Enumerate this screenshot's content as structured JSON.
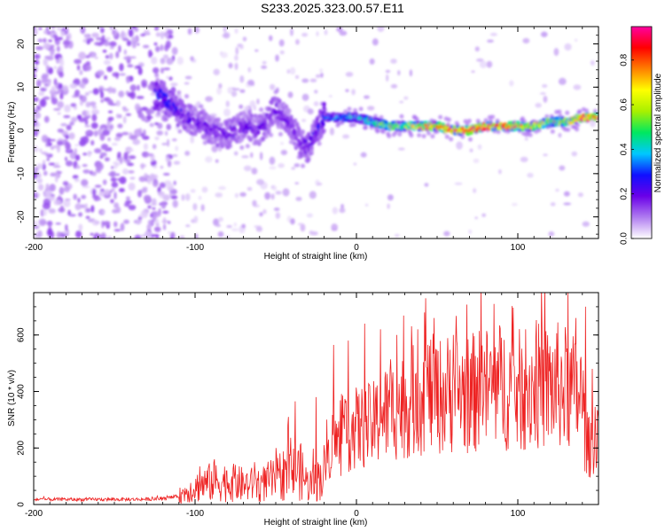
{
  "title": "S233.2025.323.00.57.E11",
  "chart_data": [
    {
      "type": "heatmap",
      "xlabel": "Height of straight line (km)",
      "ylabel": "Frequency (Hz)",
      "xlim": [
        -200,
        150
      ],
      "ylim": [
        -25,
        24
      ],
      "x_ticks": [
        -200,
        -100,
        0,
        100
      ],
      "y_ticks": [
        -20,
        -10,
        0,
        10,
        20
      ],
      "ridge": {
        "description_points_x": [
          -120,
          -110,
          -100,
          -90,
          -80,
          -70,
          -60,
          -50,
          -40,
          -35,
          -30,
          -20,
          -10,
          0,
          10,
          20,
          30,
          40,
          50,
          60,
          70,
          80,
          90,
          100,
          110,
          120,
          130,
          140,
          150
        ],
        "frequency_hz": [
          8,
          4,
          2,
          0,
          -1,
          1,
          0,
          5,
          1,
          -3,
          -4,
          3,
          3,
          3,
          2,
          1,
          1,
          1,
          1,
          0,
          0,
          1,
          1,
          1,
          1,
          2,
          2,
          3,
          3
        ],
        "amplitude": [
          0.3,
          0.25,
          0.2,
          0.2,
          0.2,
          0.2,
          0.2,
          0.2,
          0.2,
          0.2,
          0.2,
          0.3,
          0.4,
          0.4,
          0.5,
          0.6,
          0.6,
          0.8,
          0.8,
          0.9,
          0.9,
          0.9,
          0.9,
          0.8,
          0.7,
          0.6,
          0.6,
          0.9,
          0.9
        ]
      },
      "colorbar": {
        "label": "Normalized spectral amplitude",
        "range": [
          0.0,
          0.95
        ],
        "ticks": [
          "0.0",
          "0.2",
          "0.4",
          "0.6",
          "0.8"
        ],
        "colors": [
          "#ffffff",
          "#b07cf0",
          "#6a00e8",
          "#1010ff",
          "#00c8ff",
          "#00e860",
          "#a8f000",
          "#ffff00",
          "#ff8000",
          "#ff0000",
          "#ff00a0"
        ]
      }
    },
    {
      "type": "line",
      "xlabel": "Height of straight line (km)",
      "ylabel": "SNR (10 * v/v)",
      "xlim": [
        -200,
        150
      ],
      "ylim": [
        0,
        750
      ],
      "x_ticks": [
        -200,
        -100,
        0,
        100
      ],
      "y_ticks": [
        0,
        200,
        400,
        600
      ],
      "series": [
        {
          "name": "SNR",
          "color": "#ee2222",
          "envelope_x": [
            -200,
            -180,
            -160,
            -140,
            -120,
            -110,
            -100,
            -90,
            -80,
            -70,
            -60,
            -50,
            -45,
            -40,
            -35,
            -30,
            -25,
            -20,
            -15,
            -10,
            -5,
            0,
            10,
            20,
            30,
            40,
            45,
            50,
            60,
            70,
            80,
            90,
            100,
            110,
            120,
            125,
            130,
            135,
            140,
            142,
            145,
            150
          ],
          "envelope_mean": [
            18,
            18,
            18,
            18,
            20,
            30,
            60,
            80,
            80,
            70,
            70,
            90,
            110,
            110,
            120,
            70,
            80,
            120,
            220,
            210,
            250,
            270,
            280,
            330,
            350,
            380,
            400,
            380,
            400,
            390,
            410,
            420,
            400,
            420,
            410,
            420,
            410,
            390,
            380,
            220,
            200,
            300
          ],
          "peaks": [
            [
              -105,
              55
            ],
            [
              -97,
              135
            ],
            [
              -88,
              160
            ],
            [
              -75,
              140
            ],
            [
              -63,
              150
            ],
            [
              -50,
              200
            ],
            [
              -42,
              310
            ],
            [
              -38,
              365
            ],
            [
              -25,
              380
            ],
            [
              -14,
              565
            ],
            [
              -5,
              580
            ],
            [
              5,
              640
            ],
            [
              15,
              620
            ],
            [
              25,
              600
            ],
            [
              38,
              620
            ],
            [
              43,
              730
            ],
            [
              48,
              660
            ],
            [
              60,
              600
            ],
            [
              75,
              520
            ],
            [
              90,
              500
            ],
            [
              105,
              620
            ],
            [
              120,
              560
            ],
            [
              130,
              540
            ],
            [
              136,
              660
            ],
            [
              142,
              700
            ],
            [
              146,
              480
            ]
          ]
        }
      ]
    }
  ]
}
